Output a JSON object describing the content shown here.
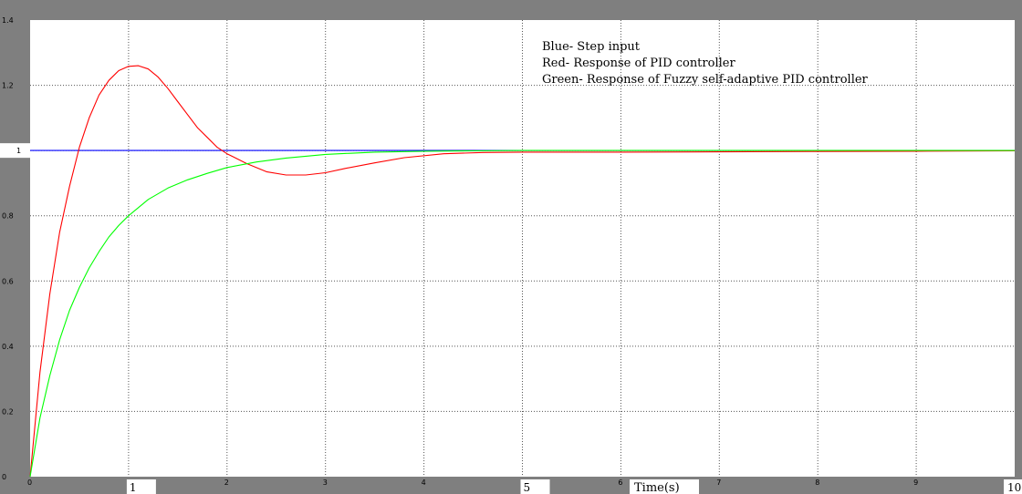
{
  "chart_data": {
    "type": "line",
    "title": "",
    "xlabel": "Time(s)",
    "ylabel": "",
    "xlim": [
      0,
      10
    ],
    "ylim": [
      0,
      1.4
    ],
    "xticks": [
      "0",
      "1",
      "2",
      "3",
      "4",
      "5",
      "6",
      "7",
      "8",
      "9",
      "10"
    ],
    "yticks": [
      "0",
      "0.2",
      "0.4",
      "0.6",
      "0.8",
      "1",
      "1.2",
      "1.4"
    ],
    "xtick_values": [
      0,
      1,
      2,
      3,
      4,
      5,
      6,
      7,
      8,
      9,
      10
    ],
    "ytick_values": [
      0,
      0.2,
      0.4,
      0.6,
      0.8,
      1,
      1.2,
      1.4
    ],
    "grid": true,
    "legend_position": "top-right",
    "annotations": [
      "Blue- Step input",
      "Red- Response of PID controller",
      "Green- Response of Fuzzy self-adaptive PID controller"
    ],
    "series": [
      {
        "color": "#0000ff",
        "x": [
          0,
          10
        ],
        "y": [
          1,
          1
        ]
      },
      {
        "color": "#ff0000",
        "x": [
          0,
          0.1,
          0.2,
          0.3,
          0.4,
          0.5,
          0.6,
          0.7,
          0.8,
          0.9,
          1.0,
          1.1,
          1.2,
          1.3,
          1.4,
          1.5,
          1.6,
          1.7,
          1.8,
          1.9,
          2.0,
          2.2,
          2.4,
          2.6,
          2.8,
          3.0,
          3.2,
          3.5,
          3.8,
          4.2,
          4.6,
          5.0,
          6.0,
          7.0,
          8.0,
          9.0,
          10.0
        ],
        "y": [
          0,
          0.32,
          0.56,
          0.75,
          0.89,
          1.01,
          1.1,
          1.17,
          1.215,
          1.245,
          1.258,
          1.26,
          1.25,
          1.225,
          1.19,
          1.15,
          1.11,
          1.07,
          1.04,
          1.01,
          0.99,
          0.96,
          0.935,
          0.925,
          0.925,
          0.932,
          0.945,
          0.962,
          0.978,
          0.99,
          0.994,
          0.995,
          0.995,
          0.996,
          0.997,
          0.998,
          0.999
        ]
      },
      {
        "color": "#00ff00",
        "x": [
          0,
          0.1,
          0.2,
          0.3,
          0.4,
          0.5,
          0.6,
          0.7,
          0.8,
          0.9,
          1.0,
          1.2,
          1.4,
          1.6,
          1.8,
          2.0,
          2.3,
          2.6,
          3.0,
          3.5,
          4.0,
          4.5,
          5.0,
          6.0,
          7.0,
          8.0,
          9.0,
          10.0
        ],
        "y": [
          0,
          0.18,
          0.31,
          0.42,
          0.51,
          0.58,
          0.64,
          0.69,
          0.735,
          0.77,
          0.8,
          0.85,
          0.885,
          0.91,
          0.93,
          0.948,
          0.965,
          0.977,
          0.988,
          0.995,
          0.998,
          0.999,
          1.0,
          1.0,
          1.0,
          1.0,
          1.0,
          1.0
        ]
      }
    ]
  }
}
